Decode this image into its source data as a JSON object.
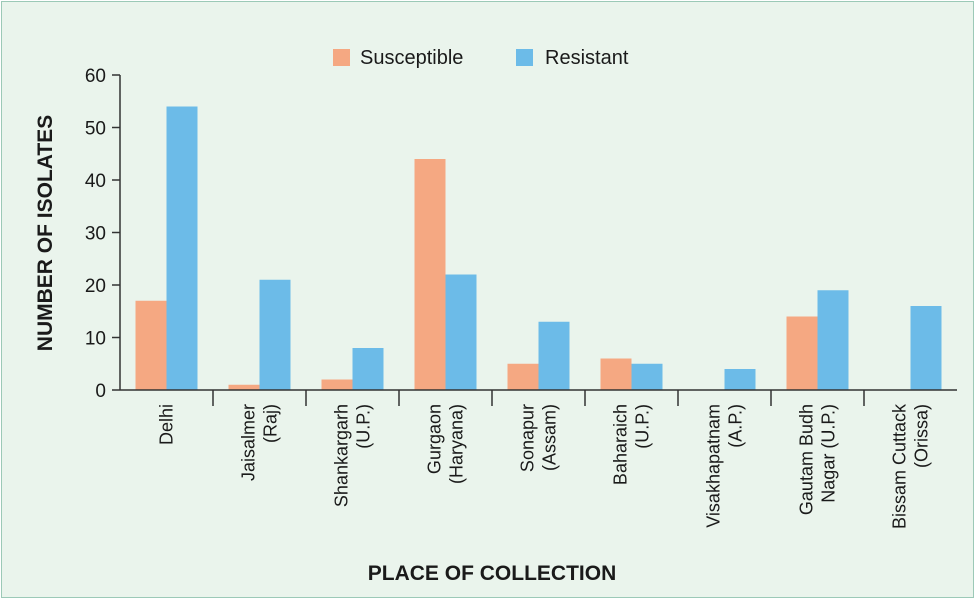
{
  "chart_data": {
    "type": "bar",
    "xlabel": "PLACE OF COLLECTION",
    "ylabel": "NUMBER OF ISOLATES",
    "ylim": [
      0,
      60
    ],
    "yticks": [
      0,
      10,
      20,
      30,
      40,
      50,
      60
    ],
    "legend_position": "top-center",
    "grid": false,
    "categories": [
      [
        "Delhi"
      ],
      [
        "Jaisalmer",
        "(Raj)"
      ],
      [
        "Shankargarh",
        "(U.P.)"
      ],
      [
        "Gurgaon",
        "(Haryana)"
      ],
      [
        "Sonapur",
        "(Assam)"
      ],
      [
        "Baharaich",
        "(U.P.)"
      ],
      [
        "Visakhapatnam",
        "(A.P.)"
      ],
      [
        "Gautam Budh",
        "Nagar (U.P.)"
      ],
      [
        "Bissam Cuttack",
        "(Orissa)"
      ]
    ],
    "series": [
      {
        "name": "Susceptible",
        "color": "#f5a882",
        "values": [
          17,
          1,
          2,
          44,
          5,
          6,
          0,
          14,
          0
        ]
      },
      {
        "name": "Resistant",
        "color": "#6cbbe8",
        "values": [
          54,
          21,
          8,
          22,
          13,
          5,
          4,
          19,
          16
        ]
      }
    ]
  }
}
